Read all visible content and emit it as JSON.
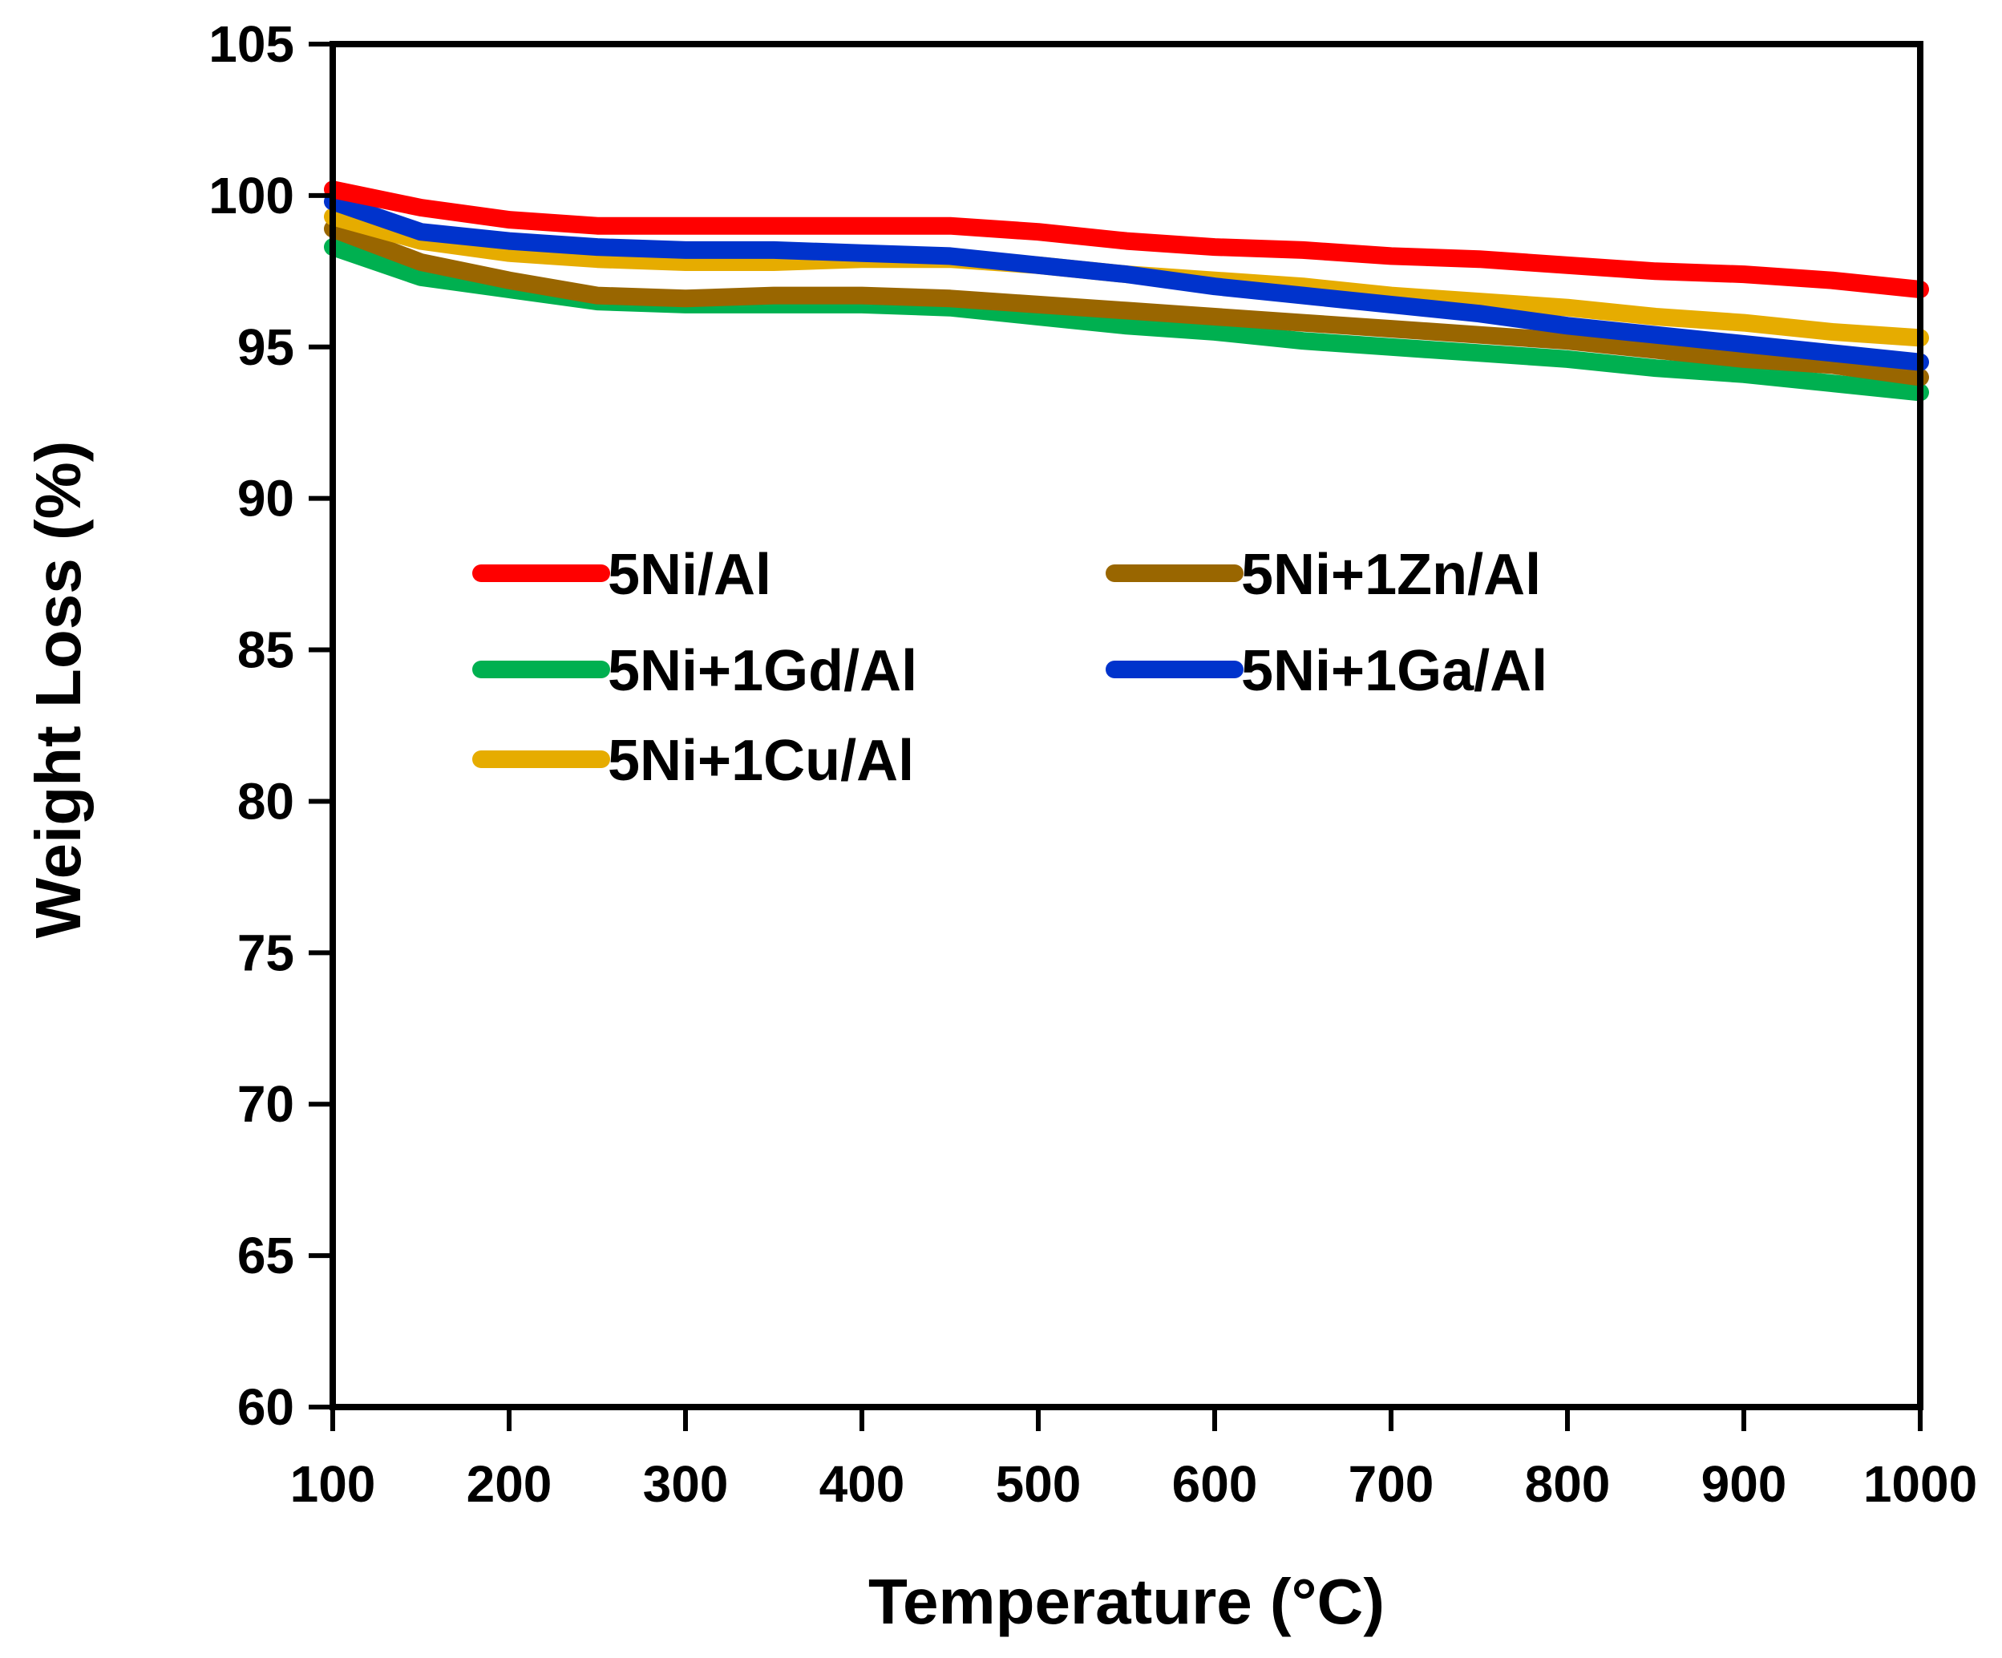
{
  "chart_data": {
    "type": "line",
    "title": "",
    "xlabel": "Temperature (°C)",
    "ylabel": "Weight Loss (%)",
    "xlim": [
      100,
      1000
    ],
    "ylim": [
      60,
      105
    ],
    "x_ticks": [
      100,
      200,
      300,
      400,
      500,
      600,
      700,
      800,
      900,
      1000
    ],
    "y_ticks": [
      60,
      65,
      70,
      75,
      80,
      85,
      90,
      95,
      100,
      105
    ],
    "grid": false,
    "legend_position": "inside-upper-left, two columns",
    "x": [
      100,
      150,
      200,
      250,
      300,
      350,
      400,
      450,
      500,
      550,
      600,
      650,
      700,
      750,
      800,
      850,
      900,
      950,
      1000
    ],
    "series": [
      {
        "name": "5Ni/Al",
        "color": "#ff0000",
        "values": [
          100.2,
          99.6,
          99.2,
          99.0,
          99.0,
          99.0,
          99.0,
          99.0,
          98.8,
          98.5,
          98.3,
          98.2,
          98.0,
          97.9,
          97.7,
          97.5,
          97.4,
          97.2,
          96.9
        ]
      },
      {
        "name": "5Ni+1Zn/Al",
        "color": "#996600",
        "values": [
          98.9,
          97.8,
          97.2,
          96.7,
          96.6,
          96.7,
          96.7,
          96.6,
          96.4,
          96.2,
          96.0,
          95.8,
          95.6,
          95.4,
          95.2,
          94.9,
          94.6,
          94.4,
          94.0
        ]
      },
      {
        "name": "5Ni+1Gd/Al",
        "color": "#00b050",
        "values": [
          98.3,
          97.3,
          96.9,
          96.5,
          96.4,
          96.4,
          96.4,
          96.3,
          96.0,
          95.7,
          95.5,
          95.2,
          95.0,
          94.8,
          94.6,
          94.3,
          94.1,
          93.8,
          93.5
        ]
      },
      {
        "name": "5Ni+1Ga/Al",
        "color": "#0033cc",
        "values": [
          99.8,
          98.8,
          98.5,
          98.3,
          98.2,
          98.2,
          98.1,
          98.0,
          97.7,
          97.4,
          97.0,
          96.7,
          96.4,
          96.1,
          95.7,
          95.4,
          95.1,
          94.8,
          94.5
        ]
      },
      {
        "name": "5Ni+1Cu/Al",
        "color": "#e6ac00",
        "values": [
          99.3,
          98.5,
          98.1,
          97.9,
          97.8,
          97.8,
          97.9,
          97.9,
          97.7,
          97.4,
          97.2,
          97.0,
          96.7,
          96.5,
          96.3,
          96.0,
          95.8,
          95.5,
          95.3
        ]
      }
    ]
  }
}
